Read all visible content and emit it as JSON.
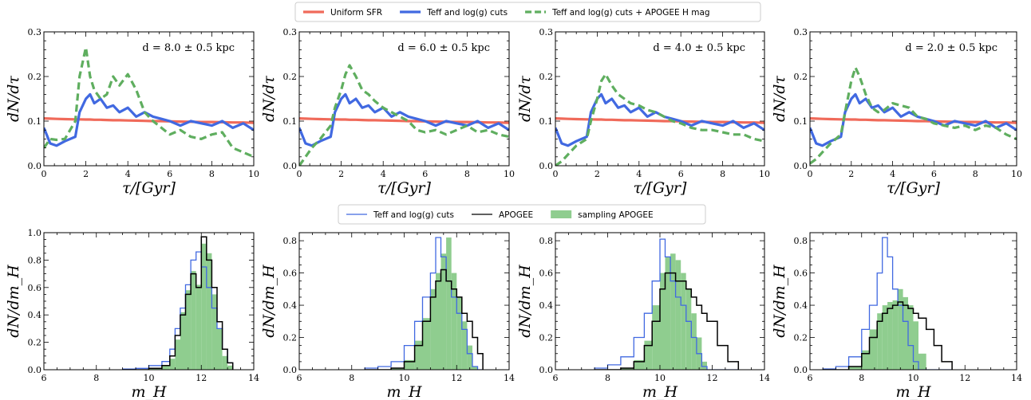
{
  "legends": {
    "top": [
      {
        "label": "Uniform SFR",
        "color": "#f06a5a",
        "style": "solid"
      },
      {
        "label": "Teff and log(g) cuts",
        "color": "#4169e1",
        "style": "solid"
      },
      {
        "label": "Teff and log(g) cuts + APOGEE H mag",
        "color": "#5fae5f",
        "style": "dashed"
      }
    ],
    "bottom": [
      {
        "label": "Teff and log(g) cuts",
        "color": "#4169e1",
        "style": "step"
      },
      {
        "label": "APOGEE",
        "color": "#000000",
        "style": "step"
      },
      {
        "label": "sampling APOGEE",
        "color": "#8fcd8f",
        "style": "fill"
      }
    ]
  },
  "chart_data": [
    {
      "type": "line",
      "panel": "top-1",
      "annotation": "d = 8.0 ± 0.5 kpc",
      "xlabel": "τ/[Gyr]",
      "ylabel": "dN/dτ",
      "xlim": [
        0,
        10
      ],
      "ylim": [
        0,
        0.3
      ],
      "xticks": [
        "0",
        "2",
        "4",
        "6",
        "8",
        "10"
      ],
      "yticks": [
        "0.0",
        "0.1",
        "0.2",
        "0.3"
      ],
      "x": [
        0,
        0.3,
        0.6,
        1.0,
        1.5,
        1.7,
        2.0,
        2.2,
        2.4,
        2.7,
        3.0,
        3.3,
        3.6,
        4.0,
        4.4,
        4.8,
        5.2,
        5.6,
        6.0,
        6.5,
        7.0,
        7.5,
        8.0,
        8.5,
        9.0,
        9.5,
        10.0
      ],
      "series": [
        {
          "name": "Uniform SFR",
          "values": [
            0.106,
            0.1055,
            0.105,
            0.1045,
            0.104,
            0.104,
            0.1035,
            0.1035,
            0.103,
            0.103,
            0.1025,
            0.102,
            0.102,
            0.1015,
            0.101,
            0.1005,
            0.1,
            0.1,
            0.0995,
            0.099,
            0.0985,
            0.098,
            0.098,
            0.0975,
            0.097,
            0.097,
            0.096
          ]
        },
        {
          "name": "Teff and log(g) cuts",
          "values": [
            0.085,
            0.05,
            0.045,
            0.055,
            0.065,
            0.12,
            0.15,
            0.16,
            0.14,
            0.15,
            0.13,
            0.135,
            0.12,
            0.13,
            0.11,
            0.12,
            0.11,
            0.105,
            0.1,
            0.09,
            0.1,
            0.095,
            0.09,
            0.1,
            0.085,
            0.095,
            0.08
          ]
        },
        {
          "name": "Teff and log(g) cuts + APOGEE H mag",
          "values": [
            0.04,
            0.06,
            0.058,
            0.06,
            0.1,
            0.2,
            0.265,
            0.2,
            0.17,
            0.15,
            0.16,
            0.2,
            0.18,
            0.205,
            0.17,
            0.12,
            0.1,
            0.085,
            0.07,
            0.08,
            0.065,
            0.06,
            0.07,
            0.075,
            0.04,
            0.03,
            0.02
          ]
        }
      ]
    },
    {
      "type": "line",
      "panel": "top-2",
      "annotation": "d = 6.0 ± 0.5 kpc",
      "xlabel": "τ/[Gyr]",
      "ylabel": "dN/dτ",
      "xlim": [
        0,
        10
      ],
      "ylim": [
        0,
        0.3
      ],
      "xticks": [
        "0",
        "2",
        "4",
        "6",
        "8",
        "10"
      ],
      "yticks": [
        "0.0",
        "0.1",
        "0.2",
        "0.3"
      ],
      "x": [
        0,
        0.3,
        0.6,
        1.0,
        1.5,
        1.7,
        2.0,
        2.2,
        2.4,
        2.7,
        3.0,
        3.3,
        3.6,
        4.0,
        4.4,
        4.8,
        5.2,
        5.6,
        6.0,
        6.5,
        7.0,
        7.5,
        8.0,
        8.5,
        9.0,
        9.5,
        10.0
      ],
      "series": [
        {
          "name": "Uniform SFR",
          "values": [
            0.106,
            0.1055,
            0.105,
            0.1045,
            0.104,
            0.104,
            0.1035,
            0.1035,
            0.103,
            0.103,
            0.1025,
            0.102,
            0.102,
            0.1015,
            0.101,
            0.1005,
            0.1,
            0.1,
            0.0995,
            0.099,
            0.0985,
            0.098,
            0.098,
            0.0975,
            0.097,
            0.097,
            0.096
          ]
        },
        {
          "name": "Teff and log(g) cuts",
          "values": [
            0.085,
            0.05,
            0.045,
            0.055,
            0.065,
            0.12,
            0.15,
            0.16,
            0.14,
            0.15,
            0.13,
            0.135,
            0.12,
            0.13,
            0.11,
            0.12,
            0.11,
            0.105,
            0.1,
            0.09,
            0.1,
            0.095,
            0.09,
            0.1,
            0.085,
            0.095,
            0.08
          ]
        },
        {
          "name": "Teff and log(g) cuts + APOGEE H mag",
          "values": [
            0.0,
            0.02,
            0.04,
            0.06,
            0.09,
            0.13,
            0.17,
            0.205,
            0.225,
            0.2,
            0.17,
            0.16,
            0.145,
            0.13,
            0.12,
            0.11,
            0.1,
            0.08,
            0.075,
            0.08,
            0.07,
            0.08,
            0.09,
            0.075,
            0.08,
            0.07,
            0.065
          ]
        }
      ]
    },
    {
      "type": "line",
      "panel": "top-3",
      "annotation": "d = 4.0 ± 0.5 kpc",
      "xlabel": "τ/[Gyr]",
      "ylabel": "dN/dτ",
      "xlim": [
        0,
        10
      ],
      "ylim": [
        0,
        0.3
      ],
      "xticks": [
        "0",
        "2",
        "4",
        "6",
        "8",
        "10"
      ],
      "yticks": [
        "0.0",
        "0.1",
        "0.2",
        "0.3"
      ],
      "x": [
        0,
        0.3,
        0.6,
        1.0,
        1.5,
        1.7,
        2.0,
        2.2,
        2.4,
        2.7,
        3.0,
        3.3,
        3.6,
        4.0,
        4.4,
        4.8,
        5.2,
        5.6,
        6.0,
        6.5,
        7.0,
        7.5,
        8.0,
        8.5,
        9.0,
        9.5,
        10.0
      ],
      "series": [
        {
          "name": "Uniform SFR",
          "values": [
            0.106,
            0.1055,
            0.105,
            0.1045,
            0.104,
            0.104,
            0.1035,
            0.1035,
            0.103,
            0.103,
            0.1025,
            0.102,
            0.102,
            0.1015,
            0.101,
            0.1005,
            0.1,
            0.1,
            0.0995,
            0.099,
            0.0985,
            0.098,
            0.098,
            0.0975,
            0.097,
            0.097,
            0.096
          ]
        },
        {
          "name": "Teff and log(g) cuts",
          "values": [
            0.085,
            0.05,
            0.045,
            0.055,
            0.065,
            0.12,
            0.15,
            0.16,
            0.14,
            0.15,
            0.13,
            0.135,
            0.12,
            0.13,
            0.11,
            0.12,
            0.11,
            0.105,
            0.1,
            0.09,
            0.1,
            0.095,
            0.09,
            0.1,
            0.085,
            0.095,
            0.08
          ]
        },
        {
          "name": "Teff and log(g) cuts + APOGEE H mag",
          "values": [
            0.0,
            0.01,
            0.025,
            0.045,
            0.06,
            0.1,
            0.15,
            0.19,
            0.205,
            0.18,
            0.16,
            0.15,
            0.14,
            0.135,
            0.125,
            0.12,
            0.11,
            0.1,
            0.095,
            0.085,
            0.08,
            0.08,
            0.075,
            0.07,
            0.07,
            0.06,
            0.055
          ]
        }
      ]
    },
    {
      "type": "line",
      "panel": "top-4",
      "annotation": "d = 2.0 ± 0.5 kpc",
      "xlabel": "τ/[Gyr]",
      "ylabel": "dN/dτ",
      "xlim": [
        0,
        10
      ],
      "ylim": [
        0,
        0.3
      ],
      "xticks": [
        "0",
        "2",
        "4",
        "6",
        "8",
        "10"
      ],
      "yticks": [
        "0.0",
        "0.1",
        "0.2",
        "0.3"
      ],
      "x": [
        0,
        0.3,
        0.6,
        1.0,
        1.5,
        1.7,
        2.0,
        2.2,
        2.4,
        2.7,
        3.0,
        3.3,
        3.6,
        4.0,
        4.4,
        4.8,
        5.2,
        5.6,
        6.0,
        6.5,
        7.0,
        7.5,
        8.0,
        8.5,
        9.0,
        9.5,
        10.0
      ],
      "series": [
        {
          "name": "Uniform SFR",
          "values": [
            0.106,
            0.1055,
            0.105,
            0.1045,
            0.104,
            0.104,
            0.1035,
            0.1035,
            0.103,
            0.103,
            0.1025,
            0.102,
            0.102,
            0.1015,
            0.101,
            0.1005,
            0.1,
            0.1,
            0.0995,
            0.099,
            0.0985,
            0.098,
            0.098,
            0.0975,
            0.097,
            0.097,
            0.096
          ]
        },
        {
          "name": "Teff and log(g) cuts",
          "values": [
            0.085,
            0.05,
            0.045,
            0.055,
            0.065,
            0.12,
            0.15,
            0.16,
            0.14,
            0.15,
            0.13,
            0.135,
            0.12,
            0.13,
            0.11,
            0.12,
            0.11,
            0.105,
            0.1,
            0.09,
            0.1,
            0.095,
            0.09,
            0.1,
            0.085,
            0.095,
            0.08
          ]
        },
        {
          "name": "Teff and log(g) cuts + APOGEE H mag",
          "values": [
            0.005,
            0.015,
            0.03,
            0.05,
            0.07,
            0.12,
            0.19,
            0.22,
            0.2,
            0.16,
            0.13,
            0.12,
            0.125,
            0.14,
            0.135,
            0.13,
            0.11,
            0.105,
            0.095,
            0.09,
            0.085,
            0.09,
            0.08,
            0.09,
            0.085,
            0.07,
            0.06
          ]
        }
      ]
    },
    {
      "type": "histogram",
      "panel": "bottom-1",
      "xlabel": "m_H",
      "ylabel": "dN/dm_H",
      "xlim": [
        6,
        14
      ],
      "ylim": [
        0,
        1.0
      ],
      "xticks": [
        "6",
        "8",
        "10",
        "12",
        "14"
      ],
      "yticks": [
        "0.0",
        "0.2",
        "0.4",
        "0.6",
        "0.8",
        "1.0"
      ],
      "x": [
        9.0,
        9.5,
        10.0,
        10.5,
        10.8,
        11.0,
        11.2,
        11.4,
        11.6,
        11.8,
        12.0,
        12.2,
        12.4,
        12.6,
        12.8,
        13.0,
        13.2
      ],
      "series": [
        {
          "name": "Teff and log(g) cuts",
          "values": [
            0.005,
            0.01,
            0.03,
            0.06,
            0.15,
            0.3,
            0.45,
            0.62,
            0.8,
            0.86,
            0.75,
            0.6,
            0.45,
            0.3,
            0.15,
            0.05,
            0.0
          ]
        },
        {
          "name": "APOGEE",
          "values": [
            0.0,
            0.0,
            0.01,
            0.03,
            0.1,
            0.25,
            0.4,
            0.55,
            0.7,
            0.6,
            0.97,
            0.8,
            0.6,
            0.35,
            0.15,
            0.05,
            0.0
          ]
        },
        {
          "name": "sampling APOGEE",
          "values": [
            0.0,
            0.0,
            0.01,
            0.03,
            0.08,
            0.22,
            0.42,
            0.58,
            0.72,
            0.62,
            0.92,
            0.85,
            0.55,
            0.3,
            0.1,
            0.03,
            0.0
          ]
        }
      ]
    },
    {
      "type": "histogram",
      "panel": "bottom-2",
      "xlabel": "m_H",
      "ylabel": "dN/dm_H",
      "xlim": [
        6,
        14
      ],
      "ylim": [
        0,
        0.85
      ],
      "xticks": [
        "6",
        "8",
        "10",
        "12",
        "14"
      ],
      "yticks": [
        "0.0",
        "0.2",
        "0.4",
        "0.6",
        "0.8"
      ],
      "x": [
        8.5,
        9.0,
        9.5,
        10.0,
        10.4,
        10.7,
        11.0,
        11.2,
        11.4,
        11.6,
        11.8,
        12.0,
        12.2,
        12.4,
        12.6,
        12.8,
        13.0
      ],
      "series": [
        {
          "name": "Teff and log(g) cuts",
          "values": [
            0.01,
            0.02,
            0.05,
            0.15,
            0.3,
            0.45,
            0.6,
            0.82,
            0.7,
            0.55,
            0.45,
            0.35,
            0.25,
            0.1,
            0.02,
            0.0,
            0.0
          ]
        },
        {
          "name": "APOGEE",
          "values": [
            0.0,
            0.0,
            0.01,
            0.05,
            0.15,
            0.3,
            0.45,
            0.55,
            0.62,
            0.55,
            0.5,
            0.45,
            0.35,
            0.3,
            0.2,
            0.1,
            0.0
          ]
        },
        {
          "name": "sampling APOGEE",
          "values": [
            0.0,
            0.0,
            0.01,
            0.06,
            0.18,
            0.32,
            0.5,
            0.6,
            0.72,
            0.82,
            0.6,
            0.45,
            0.3,
            0.15,
            0.02,
            0.0,
            0.0
          ]
        }
      ]
    },
    {
      "type": "histogram",
      "panel": "bottom-3",
      "xlabel": "m_H",
      "ylabel": "dN/dm_H",
      "xlim": [
        6,
        14
      ],
      "ylim": [
        0,
        0.85
      ],
      "xticks": [
        "6",
        "8",
        "10",
        "12",
        "14"
      ],
      "yticks": [
        "0.0",
        "0.2",
        "0.4",
        "0.6",
        "0.8"
      ],
      "x": [
        7.5,
        8.0,
        8.5,
        9.0,
        9.4,
        9.7,
        10.0,
        10.2,
        10.4,
        10.6,
        10.8,
        11.0,
        11.2,
        11.4,
        11.6,
        11.8,
        12.2,
        12.6,
        13.0
      ],
      "series": [
        {
          "name": "Teff and log(g) cuts",
          "values": [
            0.01,
            0.03,
            0.08,
            0.2,
            0.35,
            0.55,
            0.81,
            0.7,
            0.55,
            0.45,
            0.4,
            0.3,
            0.2,
            0.1,
            0.02,
            0.0,
            0.0,
            0.0,
            0.0
          ]
        },
        {
          "name": "APOGEE",
          "values": [
            0.0,
            0.0,
            0.01,
            0.05,
            0.15,
            0.3,
            0.5,
            0.6,
            0.6,
            0.55,
            0.55,
            0.5,
            0.45,
            0.4,
            0.35,
            0.3,
            0.15,
            0.05,
            0.0
          ]
        },
        {
          "name": "sampling APOGEE",
          "values": [
            0.0,
            0.0,
            0.01,
            0.06,
            0.18,
            0.4,
            0.6,
            0.7,
            0.72,
            0.68,
            0.6,
            0.5,
            0.35,
            0.2,
            0.05,
            0.0,
            0.0,
            0.0,
            0.0
          ]
        }
      ]
    },
    {
      "type": "histogram",
      "panel": "bottom-4",
      "xlabel": "m_H",
      "ylabel": "dN/dm_H",
      "xlim": [
        6,
        14
      ],
      "ylim": [
        0,
        0.85
      ],
      "xticks": [
        "6",
        "8",
        "10",
        "12",
        "14"
      ],
      "yticks": [
        "0.0",
        "0.2",
        "0.4",
        "0.6",
        "0.8"
      ],
      "x": [
        6.5,
        7.0,
        7.5,
        8.0,
        8.3,
        8.6,
        8.8,
        9.0,
        9.2,
        9.4,
        9.6,
        9.8,
        10.0,
        10.2,
        10.5,
        10.8,
        11.1,
        11.5
      ],
      "series": [
        {
          "name": "Teff and log(g) cuts",
          "values": [
            0.005,
            0.02,
            0.08,
            0.25,
            0.4,
            0.6,
            0.82,
            0.7,
            0.5,
            0.4,
            0.3,
            0.15,
            0.05,
            0.0,
            0.0,
            0.0,
            0.0,
            0.0
          ]
        },
        {
          "name": "APOGEE",
          "values": [
            0.0,
            0.0,
            0.02,
            0.1,
            0.2,
            0.3,
            0.35,
            0.38,
            0.4,
            0.42,
            0.4,
            0.38,
            0.35,
            0.32,
            0.25,
            0.15,
            0.05,
            0.0
          ]
        },
        {
          "name": "sampling APOGEE",
          "values": [
            0.0,
            0.0,
            0.02,
            0.12,
            0.25,
            0.35,
            0.4,
            0.42,
            0.43,
            0.5,
            0.45,
            0.4,
            0.3,
            0.1,
            0.0,
            0.0,
            0.0,
            0.0
          ]
        }
      ]
    }
  ]
}
